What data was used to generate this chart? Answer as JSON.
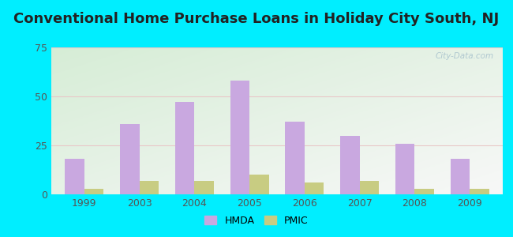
{
  "title": "Conventional Home Purchase Loans in Holiday City South, NJ",
  "years": [
    1999,
    2003,
    2004,
    2005,
    2006,
    2007,
    2008,
    2009
  ],
  "hmda_values": [
    18,
    36,
    47,
    58,
    37,
    30,
    26,
    18
  ],
  "pmic_values": [
    3,
    7,
    7,
    10,
    6,
    7,
    3,
    3
  ],
  "hmda_color": "#c9a8e0",
  "pmic_color": "#c8cc82",
  "bar_width": 0.35,
  "ylim": [
    0,
    75
  ],
  "yticks": [
    0,
    25,
    50,
    75
  ],
  "background_outer": "#00eeff",
  "grad_top_left": "#d6edd6",
  "grad_bottom_right": "#f5f5f5",
  "title_fontsize": 13,
  "watermark": "City-Data.com",
  "legend_labels": [
    "HMDA",
    "PMIC"
  ],
  "grid_color": "#dddddd",
  "tick_color": "#555555"
}
